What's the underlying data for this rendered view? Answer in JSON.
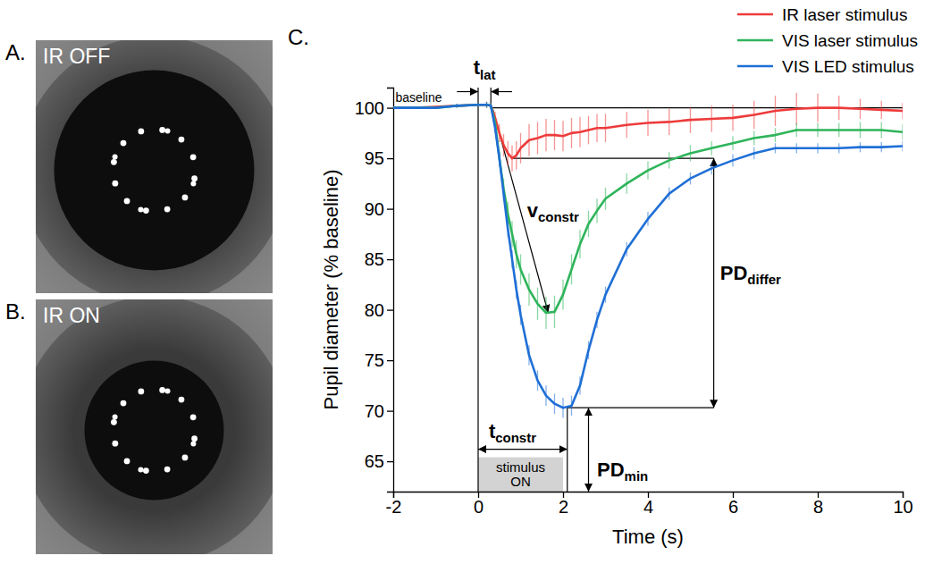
{
  "panels": [
    {
      "letter": "A.",
      "label": "IR OFF"
    },
    {
      "letter": "B.",
      "label": "IR ON"
    }
  ],
  "chart_data": {
    "type": "line",
    "letter": "C.",
    "x_label": "Time (s)",
    "y_label": "Pupil diameter (% baseline)",
    "xlim": [
      -2,
      10
    ],
    "ylim": [
      62,
      102
    ],
    "xticks": [
      -2,
      0,
      2,
      4,
      6,
      8,
      10
    ],
    "yticks": [
      65,
      70,
      75,
      80,
      85,
      90,
      95,
      100
    ],
    "legend": "top-right",
    "x": [
      -2,
      -1.5,
      -1,
      -0.5,
      0,
      0.2,
      0.3,
      0.4,
      0.5,
      0.6,
      0.7,
      0.8,
      0.9,
      1.0,
      1.2,
      1.4,
      1.6,
      1.8,
      2.0,
      2.2,
      2.4,
      2.6,
      2.8,
      3.0,
      3.5,
      4,
      4.5,
      5,
      5.5,
      6,
      6.5,
      7,
      7.5,
      8,
      8.5,
      9,
      9.5,
      10
    ],
    "series": [
      {
        "name": "IR laser stimulus",
        "color": "#ee3b3b",
        "values": [
          100,
          100,
          100.1,
          100.2,
          100.3,
          100.3,
          100.2,
          99,
          97.5,
          96.3,
          95.5,
          95,
          95.3,
          96,
          96.8,
          97,
          97.3,
          97.3,
          97.2,
          97.5,
          97.6,
          97.8,
          98,
          98,
          98.3,
          98.5,
          98.6,
          98.8,
          98.9,
          99,
          99.3,
          99.7,
          99.9,
          100,
          100,
          99.9,
          99.8,
          99.7
        ],
        "errors": [
          0.1,
          0.1,
          0.1,
          0.2,
          0.2,
          0.3,
          0.3,
          0.6,
          0.9,
          1.1,
          1.2,
          1.3,
          1.4,
          1.5,
          1.6,
          1.6,
          1.6,
          1.5,
          1.5,
          1.5,
          1.5,
          1.4,
          1.4,
          1.4,
          1.3,
          1.3,
          1.3,
          1.3,
          1.3,
          1.3,
          1.4,
          1.5,
          1.6,
          1.4,
          1.2,
          1.0,
          0.9,
          0.8
        ]
      },
      {
        "name": "VIS laser stimulus",
        "color": "#2eb45a",
        "values": [
          100,
          100,
          100,
          100.2,
          100.3,
          100.3,
          100.2,
          98.5,
          95,
          92,
          89.5,
          87.5,
          85.5,
          84,
          82,
          80.6,
          79.7,
          79.8,
          81.5,
          84,
          86.5,
          88.5,
          89.8,
          91,
          92.5,
          93.8,
          94.8,
          95.5,
          96,
          96.5,
          97,
          97.3,
          97.8,
          97.8,
          97.8,
          97.8,
          97.8,
          97.6
        ],
        "errors": [
          0.1,
          0.1,
          0.1,
          0.2,
          0.2,
          0.3,
          0.3,
          0.5,
          0.8,
          1,
          1.2,
          1.3,
          1.4,
          1.5,
          1.6,
          1.6,
          1.6,
          1.6,
          1.5,
          1.5,
          1.4,
          1.3,
          1.2,
          1.1,
          1.0,
          0.9,
          0.8,
          0.8,
          0.7,
          0.7,
          0.7,
          0.7,
          0.7,
          0.7,
          0.7,
          0.8,
          0.8,
          0.8
        ]
      },
      {
        "name": "VIS LED stimulus",
        "color": "#1f6fd6",
        "values": [
          100,
          100,
          100,
          100.2,
          100.3,
          100.3,
          100.2,
          98,
          95,
          91.5,
          88,
          85,
          82,
          79.5,
          75.5,
          73,
          71.5,
          70.7,
          70.3,
          70.5,
          72.5,
          76,
          79,
          81.5,
          86,
          89,
          91.5,
          93,
          94,
          94.8,
          95.5,
          96,
          96,
          96,
          96,
          96.1,
          96.1,
          96.2
        ],
        "errors": [
          0.1,
          0.1,
          0.1,
          0.2,
          0.2,
          0.3,
          0.3,
          0.4,
          0.6,
          0.7,
          0.8,
          0.9,
          0.9,
          1,
          1,
          1,
          1,
          1,
          1,
          1,
          0.9,
          0.9,
          0.8,
          0.8,
          0.7,
          0.7,
          0.6,
          0.6,
          0.6,
          0.6,
          0.6,
          0.5,
          0.5,
          0.5,
          0.5,
          0.5,
          0.5,
          0.5
        ]
      }
    ],
    "stimulus": {
      "label": "stimulus ON",
      "x": [
        0,
        2
      ],
      "y": [
        62,
        65.4
      ]
    },
    "annotations": [
      {
        "text": "baseline",
        "x": -1.95,
        "y": 100.6
      },
      {
        "text": "t",
        "subscript": "lat",
        "x": 0.15,
        "y": 103.3
      },
      {
        "text": "v",
        "subscript": "constr",
        "x": 1.15,
        "y": 89.2
      },
      {
        "text": "PD",
        "subscript": "differ",
        "x": 5.7,
        "y": 83
      },
      {
        "text": "t",
        "subscript": "constr",
        "x": 0.25,
        "y": 67.3
      },
      {
        "text": "PD",
        "subscript": "min",
        "x": 2.8,
        "y": 63.5
      }
    ],
    "guides": [
      {
        "x": [
          0.3,
          10
        ],
        "y": [
          100,
          100
        ]
      },
      {
        "x": [
          0,
          0
        ],
        "y": [
          62,
          102
        ]
      },
      {
        "x": [
          0.3,
          0.3
        ],
        "y": [
          100.2,
          102
        ]
      },
      {
        "x": [
          -0.5,
          0
        ],
        "y": [
          101.6,
          101.6
        ],
        "marker": "arrow"
      },
      {
        "x": [
          0.8,
          0.3
        ],
        "y": [
          101.6,
          101.6
        ],
        "marker": "arrow"
      },
      {
        "x": [
          0.35,
          1.65
        ],
        "y": [
          99.8,
          79.7
        ],
        "marker": "arrow"
      },
      {
        "x": [
          0.8,
          5.55
        ],
        "y": [
          95,
          95
        ]
      },
      {
        "x": [
          2.1,
          5.55
        ],
        "y": [
          70.3,
          70.3
        ]
      },
      {
        "x": [
          5.55,
          5.55
        ],
        "y": [
          95,
          70.3
        ],
        "marker": "double-arrow"
      },
      {
        "x": [
          0,
          2.1
        ],
        "y": [
          66.2,
          66.2
        ],
        "marker": "double-arrow"
      },
      {
        "x": [
          2.1,
          2.1
        ],
        "y": [
          70.3,
          62
        ]
      },
      {
        "x": [
          2.6,
          2.6
        ],
        "y": [
          62,
          70.3
        ],
        "marker": "double-arrow"
      }
    ]
  }
}
